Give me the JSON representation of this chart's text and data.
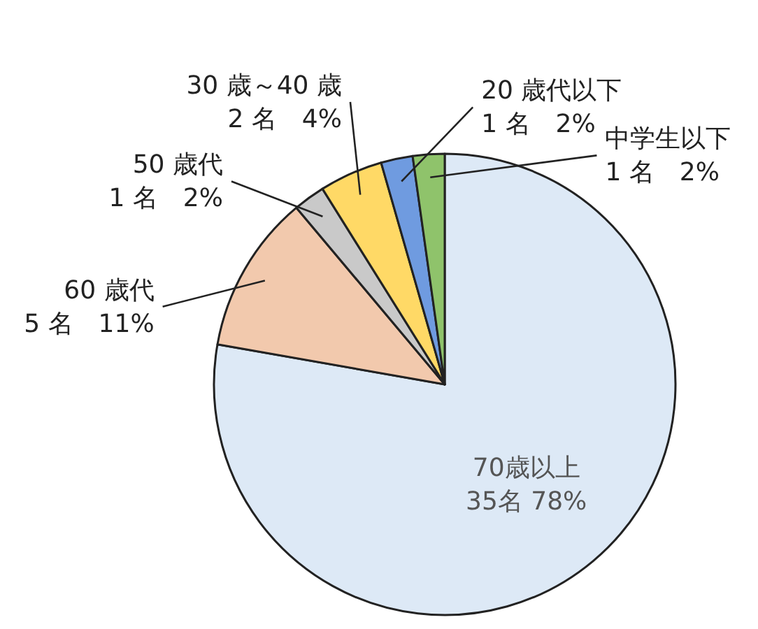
{
  "chart_data": {
    "type": "pie",
    "categories": [
      "70歳以上",
      "60 歳代",
      "50 歳代",
      "30 歳～40 歳",
      "20 歳代以下",
      "中学生以下"
    ],
    "values": [
      35,
      5,
      1,
      2,
      1,
      1
    ],
    "value_labels": [
      "35名 78%",
      "5 名　11%",
      "1 名　2%",
      "2 名　4%",
      "1 名　2%",
      "1 名　2%"
    ],
    "colors": [
      "#dde9f6",
      "#f2c9ad",
      "#c9c9c9",
      "#ffd966",
      "#6f9be0",
      "#8fc36b"
    ]
  }
}
